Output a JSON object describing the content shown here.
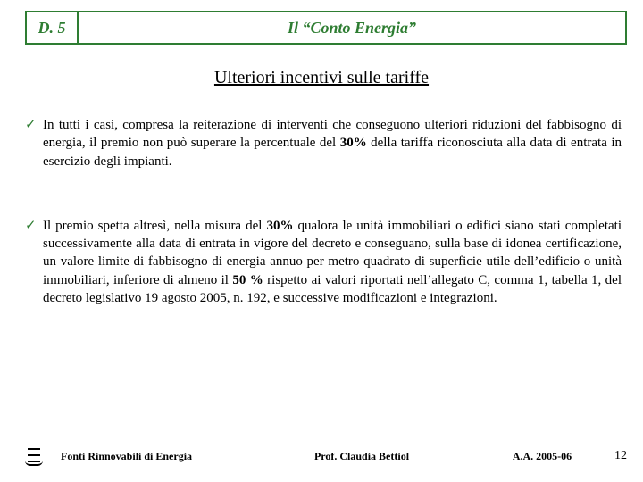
{
  "colors": {
    "border": "#2e7d32",
    "title": "#2e7d32",
    "check": "#2e7d32",
    "text": "#000000",
    "bg": "#ffffff"
  },
  "header": {
    "code": "D. 5",
    "title": "Il “Conto Energia”"
  },
  "subtitle": "Ulteriori incentivi sulle tariffe",
  "bullets": [
    {
      "pre": "In tutti i casi, compresa la reiterazione di interventi che conseguono ulteriori riduzioni del fabbisogno di energia, il premio non può superare la percentuale del ",
      "bold1": "30%",
      "post1": " della tariffa riconosciuta alla data di entrata in esercizio degli impianti.",
      "bold2": "",
      "post2": ""
    },
    {
      "pre": "Il premio spetta altresì, nella misura del ",
      "bold1": "30%",
      "post1": " qualora le unità immobiliari o edifici siano stati completati successivamente alla data di entrata in vigore del decreto e conseguano, sulla base di idonea certificazione, un valore limite di fabbisogno di energia annuo per metro quadrato di superficie utile dell’edificio o unità immobiliari, inferiore di almeno il ",
      "bold2": "50 %",
      "post2": " rispetto ai valori riportati nell’allegato C, comma 1, tabella 1, del decreto legislativo 19 agosto 2005, n. 192, e successive modificazioni e integrazioni."
    }
  ],
  "footer": {
    "course": "Fonti Rinnovabili di Energia",
    "prof": "Prof. Claudia Bettiol",
    "year": "A.A. 2005-06",
    "page": "12"
  }
}
